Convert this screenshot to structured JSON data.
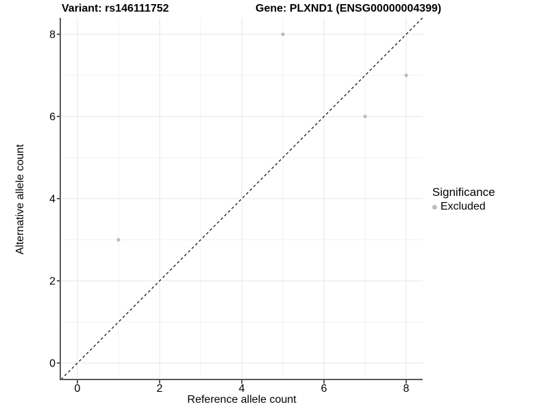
{
  "titles": {
    "variant": "Variant: rs146111752",
    "gene": "Gene: PLXND1 (ENSG00000004399)"
  },
  "chart_data": {
    "type": "scatter",
    "xlabel": "Reference allele count",
    "ylabel": "Alternative allele count",
    "xlim": [
      -0.4,
      8.4
    ],
    "ylim": [
      -0.4,
      8.4
    ],
    "x_ticks": [
      0,
      2,
      4,
      6,
      8
    ],
    "y_ticks": [
      0,
      2,
      4,
      6,
      8
    ],
    "minor_breaks": [
      1,
      3,
      5,
      7
    ],
    "grid": "on",
    "points": [
      {
        "x": 1,
        "y": 3,
        "significance": "Excluded"
      },
      {
        "x": 5,
        "y": 8,
        "significance": "Excluded"
      },
      {
        "x": 7,
        "y": 6,
        "significance": "Excluded"
      },
      {
        "x": 8,
        "y": 7,
        "significance": "Excluded"
      }
    ],
    "identity_line": {
      "style": "dashed",
      "from": [
        -0.4,
        -0.4
      ],
      "to": [
        8.4,
        8.4
      ],
      "color": "#000000"
    },
    "legend": {
      "title": "Significance",
      "position": "right",
      "items": [
        {
          "label": "Excluded",
          "color": "#bdbdbd",
          "marker": "circle"
        }
      ]
    },
    "colors": {
      "point_excluded": "#bdbdbd",
      "grid_major": "#e4e4e4",
      "grid_minor": "#f1f1f1",
      "axis_line": "#595959",
      "text": "#000000",
      "background": "#ffffff"
    }
  }
}
